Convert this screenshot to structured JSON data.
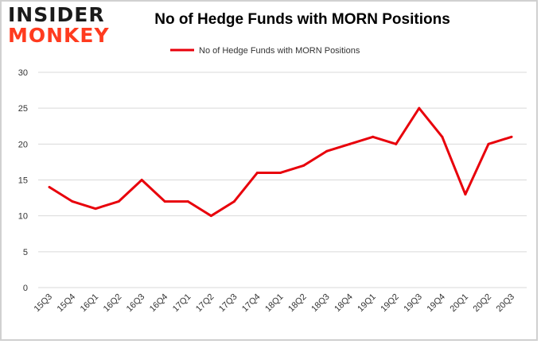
{
  "logo": {
    "line1": "INSIDER",
    "line2": "MONKEY"
  },
  "colors": {
    "series": "#e8000b",
    "grid": "#d9d9d9",
    "logo_accent": "#ff3b1f"
  },
  "chart_data": {
    "type": "line",
    "title": "No of Hedge Funds with MORN Positions",
    "xlabel": "",
    "ylabel": "",
    "categories": [
      "15Q3",
      "15Q4",
      "16Q1",
      "16Q2",
      "16Q3",
      "16Q4",
      "17Q1",
      "17Q2",
      "17Q3",
      "17Q4",
      "18Q1",
      "18Q2",
      "18Q3",
      "18Q4",
      "19Q1",
      "19Q2",
      "19Q3",
      "19Q4",
      "20Q1",
      "20Q2",
      "20Q3"
    ],
    "series": [
      {
        "name": "No of Hedge Funds with MORN Positions",
        "values": [
          14,
          12,
          11,
          12,
          15,
          12,
          12,
          10,
          12,
          16,
          16,
          17,
          19,
          20,
          21,
          20,
          25,
          21,
          13,
          20,
          21
        ]
      }
    ],
    "ylim": [
      0,
      30
    ],
    "yticks": [
      0,
      5,
      10,
      15,
      20,
      25,
      30
    ],
    "grid": true,
    "legend": "top-center"
  }
}
